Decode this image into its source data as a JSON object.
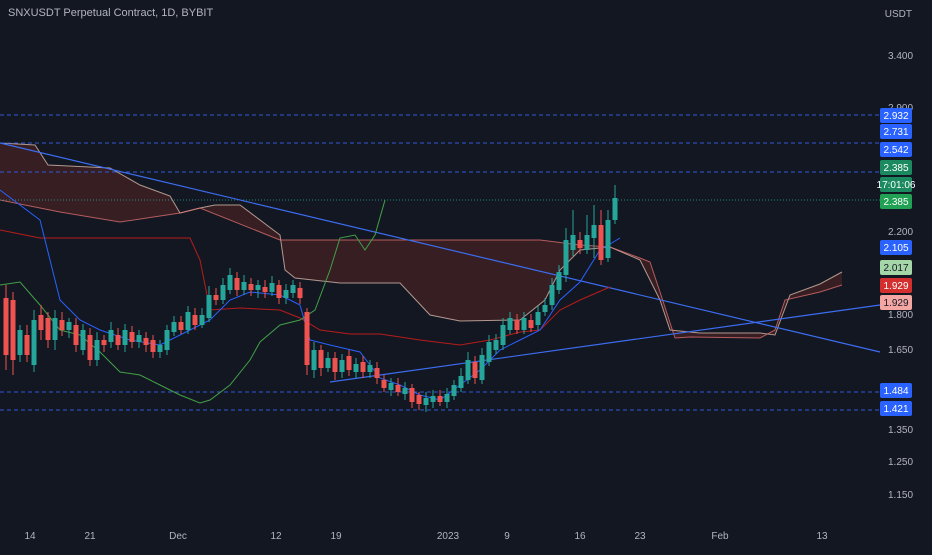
{
  "header": {
    "symbol_title": "SNXUSDT Perpetual Contract, 1D, BYBIT",
    "currency": "USDT"
  },
  "colors": {
    "background": "#131722",
    "up": "#26a69a",
    "down": "#ef5350",
    "conversion_line": "#2962ff",
    "base_line": "#b71c1c",
    "lagging_span": "#43a047",
    "cloud_fill": "#3b1f22",
    "cloud_edge": "#e3c3b5",
    "trend_line": "#3c6df0",
    "level_line": "#2f5bd6"
  },
  "price_axis": {
    "ticks": [
      "3.400",
      "2.900",
      "2.200",
      "1.800",
      "1.650",
      "1.350",
      "1.250",
      "1.150"
    ]
  },
  "time_axis": {
    "labels": [
      "14",
      "21",
      "Dec",
      "12",
      "19",
      "2023",
      "9",
      "16",
      "23",
      "Feb",
      "13"
    ]
  },
  "price_tags": [
    {
      "text": "2.932",
      "bg": "#2962ff",
      "fg": "#ffffff"
    },
    {
      "text": "2.731",
      "bg": "#2962ff",
      "fg": "#ffffff"
    },
    {
      "text": "2.542",
      "bg": "#2962ff",
      "fg": "#ffffff"
    },
    {
      "text": "2.385",
      "bg": "#1b8a60",
      "fg": "#ffffff"
    },
    {
      "text": "17:01:06",
      "bg": "#1b8a60",
      "fg": "#ffffff"
    },
    {
      "text": "2.385",
      "bg": "#21a154",
      "fg": "#ffffff"
    },
    {
      "text": "2.105",
      "bg": "#2962ff",
      "fg": "#ffffff"
    },
    {
      "text": "2.017",
      "bg": "#a5d6a7",
      "fg": "#131722"
    },
    {
      "text": "1.929",
      "bg": "#d32f2f",
      "fg": "#ffffff"
    },
    {
      "text": "1.929",
      "bg": "#f4a6a3",
      "fg": "#131722"
    },
    {
      "text": "1.484",
      "bg": "#2962ff",
      "fg": "#ffffff"
    },
    {
      "text": "1.421",
      "bg": "#2962ff",
      "fg": "#ffffff"
    }
  ]
}
